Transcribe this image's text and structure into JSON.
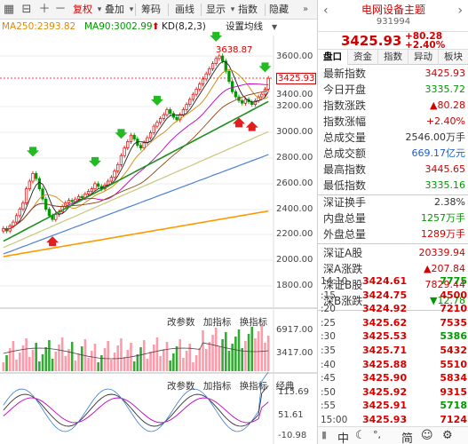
{
  "toolbar": {
    "rights_label": "复权",
    "overlay_label": "叠加",
    "chip_label": "筹码",
    "draw_label": "画线",
    "display_label": "显示",
    "index_label": "指数",
    "hide_label": "隐藏"
  },
  "ma": {
    "ma250_label": "MA250:2393.82",
    "ma90_label": "MA90:3002.99",
    "kd_label": "KD(8,2,3)",
    "settings_label": "设置均线"
  },
  "main_axis": [
    "3600.00",
    "3400.00",
    "3200.00",
    "3000.00",
    "2800.00",
    "2600.00",
    "2400.00",
    "2200.00",
    "2000.00",
    "1800.00"
  ],
  "high_annotation": "3638.87",
  "last_price_label": "3425.93",
  "volume_panel": {
    "buttons": [
      "改参数",
      "加指标",
      "换指标"
    ],
    "axis": [
      "6917.00",
      "3417.00"
    ]
  },
  "kd_panel": {
    "buttons": [
      "改参数",
      "加指标",
      "换指标",
      "经典"
    ],
    "axis": [
      "115.69",
      "51.61",
      "-10.98"
    ]
  },
  "colors": {
    "up": "#e60000",
    "down": "#009900",
    "ma_short": "#e0a000",
    "ma90": "#00aa00",
    "ma250": "#ff9900"
  },
  "panel": {
    "name": "电网设备主题",
    "code": "931994",
    "price": "3425.93",
    "change": "+80.28",
    "change_pct": "+2.40%",
    "tabs": [
      "盘口",
      "资金",
      "指数",
      "异动",
      "板块"
    ],
    "stats": [
      {
        "k": "最新指数",
        "v": "3425.93",
        "c": "#d40000"
      },
      {
        "k": "今日开盘",
        "v": "3335.72",
        "c": "#009900"
      },
      {
        "k": "指数涨跌",
        "v": "▲80.28",
        "c": "#d40000"
      },
      {
        "k": "指数涨幅",
        "v": "+2.40%",
        "c": "#d40000"
      },
      {
        "k": "总成交量",
        "v": "2546.00万手",
        "c": "#333333"
      },
      {
        "k": "总成交额",
        "v": "669.17亿元",
        "c": "#1a5fd0"
      },
      {
        "k": "最高指数",
        "v": "3445.65",
        "c": "#d40000"
      },
      {
        "k": "最低指数",
        "v": "3335.16",
        "c": "#009900"
      }
    ],
    "stats2": [
      {
        "k": "深证换手",
        "v": "2.38%",
        "c": "#333333"
      },
      {
        "k": "内盘总量",
        "v": "1257万手",
        "c": "#009900"
      },
      {
        "k": "外盘总量",
        "v": "1289万手",
        "c": "#d40000"
      }
    ],
    "stats3": [
      {
        "k": "深证A股",
        "v": "20339.94",
        "c": "#d40000"
      },
      {
        "k": "深A涨跌",
        "v": "▲207.84",
        "c": "#d40000"
      },
      {
        "k": "深证B股",
        "v": "7829.44",
        "c": "#d40000"
      },
      {
        "k": "深B涨跌",
        "v": "▼12.78",
        "c": "#009900"
      }
    ],
    "ticks": [
      {
        "t": "14:10",
        "p": "3424.61",
        "v": "7775",
        "c": "#009900"
      },
      {
        "t": ":15",
        "p": "3424.75",
        "v": "4500",
        "c": "#d40000"
      },
      {
        "t": ":20",
        "p": "3424.92",
        "v": "7210",
        "c": "#d40000"
      },
      {
        "t": ":25",
        "p": "3425.62",
        "v": "7535",
        "c": "#d40000"
      },
      {
        "t": ":30",
        "p": "3425.53",
        "v": "5386",
        "c": "#009900"
      },
      {
        "t": ":35",
        "p": "3425.71",
        "v": "5432",
        "c": "#d40000"
      },
      {
        "t": ":40",
        "p": "3425.88",
        "v": "5510",
        "c": "#d40000"
      },
      {
        "t": ":45",
        "p": "3425.90",
        "v": "5834",
        "c": "#d40000"
      },
      {
        "t": ":50",
        "p": "3425.92",
        "v": "9315",
        "c": "#d40000"
      },
      {
        "t": ":55",
        "p": "3425.91",
        "v": "5718",
        "c": "#009900"
      },
      {
        "t": "15:00",
        "p": "3425.93",
        "v": "7124",
        "c": "#d40000"
      }
    ],
    "bottom": [
      "中",
      "简"
    ]
  }
}
